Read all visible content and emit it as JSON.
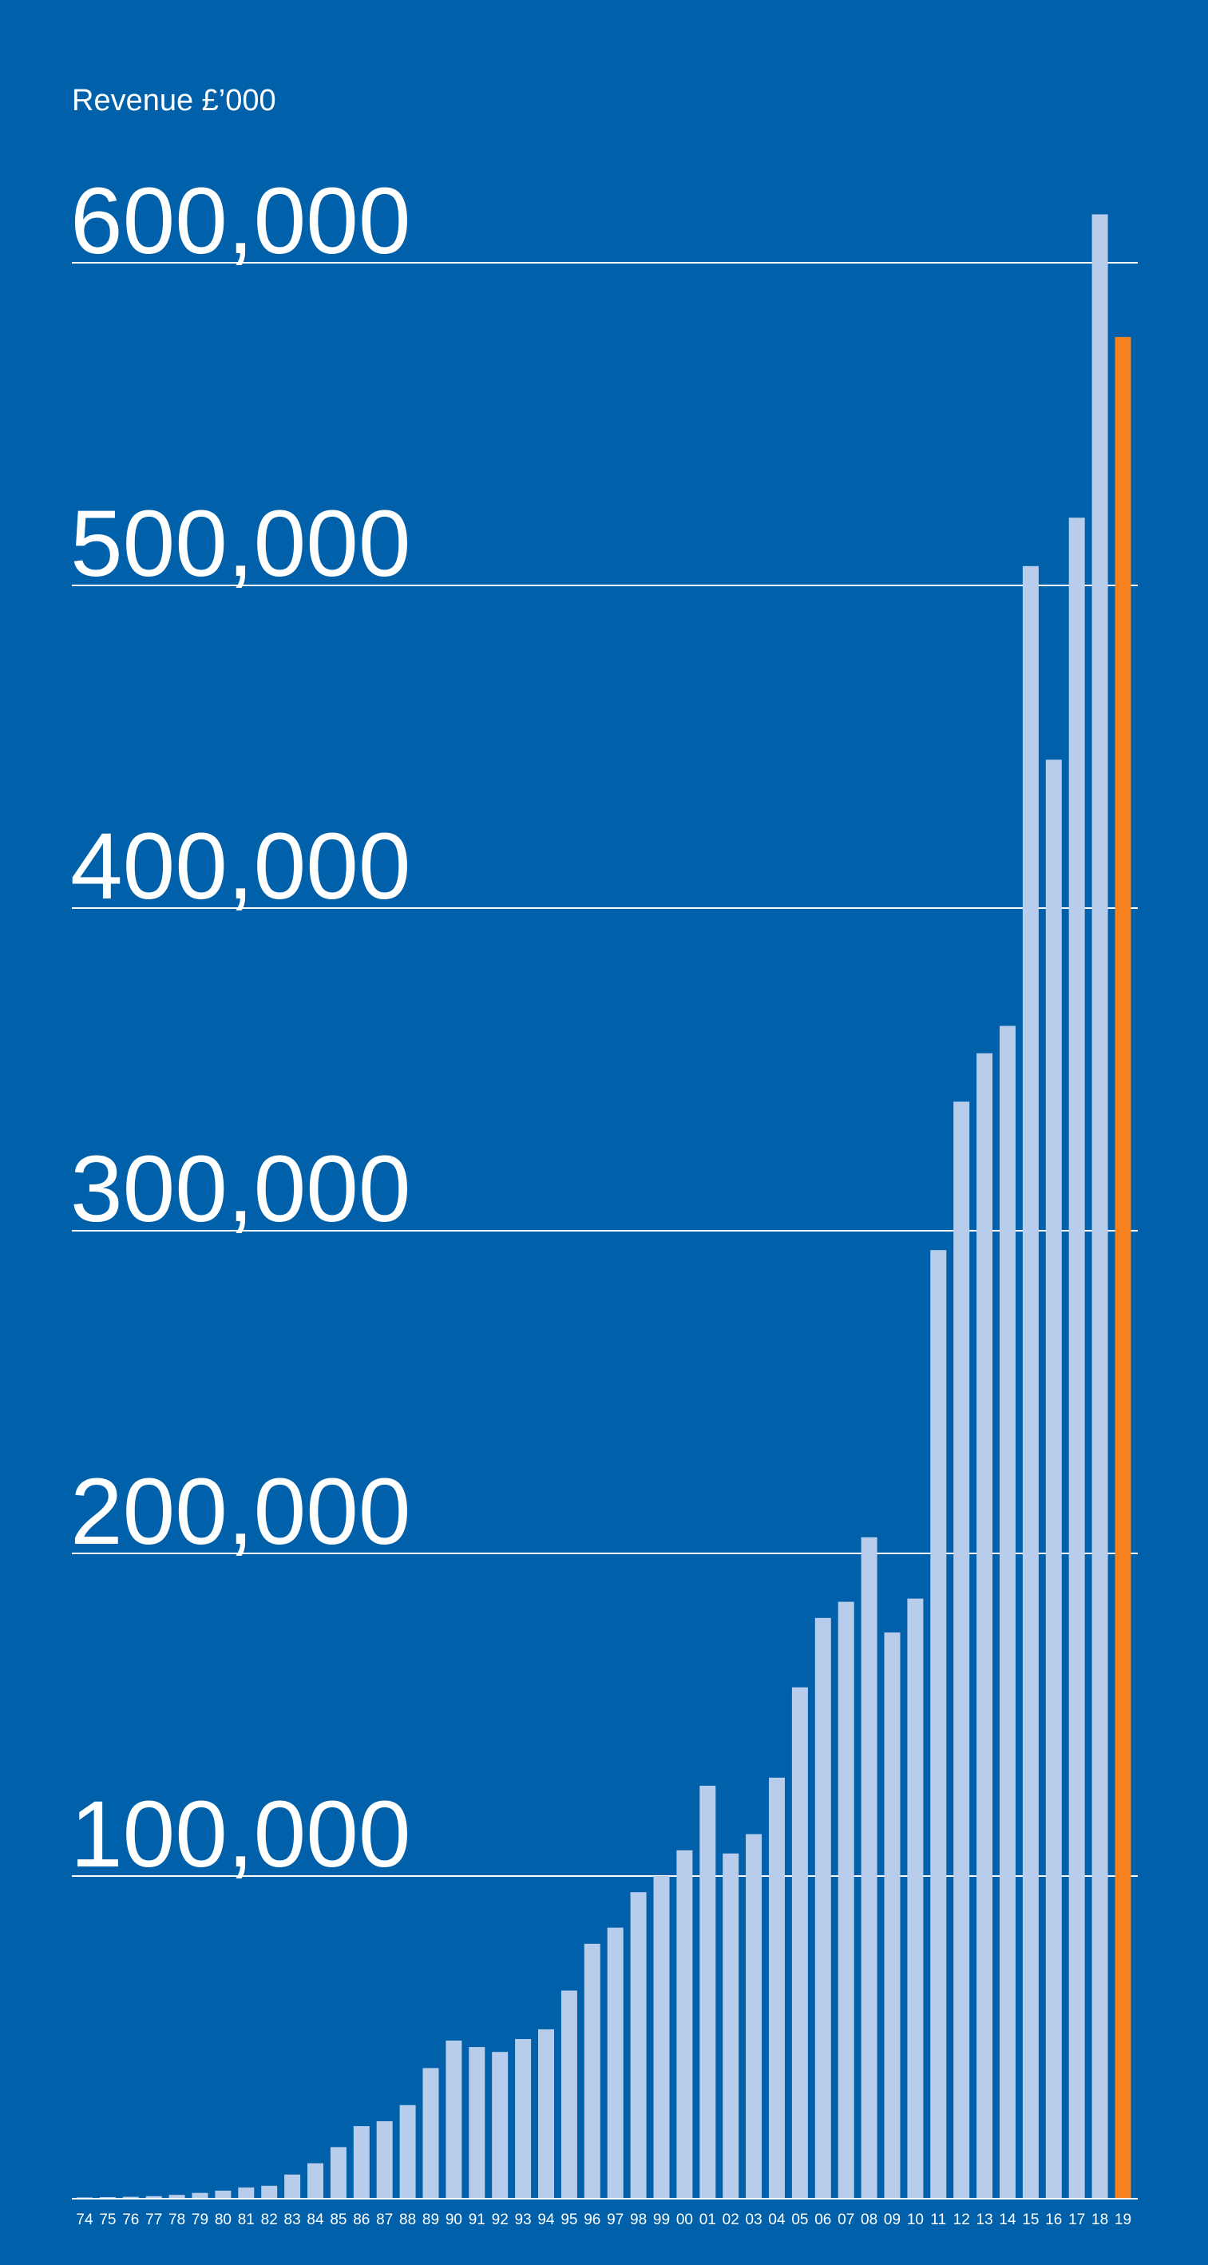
{
  "colors": {
    "background": "#0060a9",
    "bar": "#b8ccec",
    "highlight_bar": "#f5821f",
    "gridline": "#ffffff",
    "text": "#ffffff"
  },
  "chart_data": {
    "type": "bar",
    "title": "",
    "xlabel": "",
    "ylabel": "Revenue £’000",
    "ylim": [
      0,
      620000
    ],
    "grid": true,
    "y_ticks": [
      {
        "value": 100000,
        "label": "100,000"
      },
      {
        "value": 200000,
        "label": "200,000"
      },
      {
        "value": 300000,
        "label": "300,000"
      },
      {
        "value": 400000,
        "label": "400,000"
      },
      {
        "value": 500000,
        "label": "500,000"
      },
      {
        "value": 600000,
        "label": "600,000"
      }
    ],
    "categories": [
      "74",
      "75",
      "76",
      "77",
      "78",
      "79",
      "80",
      "81",
      "82",
      "83",
      "84",
      "85",
      "86",
      "87",
      "88",
      "89",
      "90",
      "91",
      "92",
      "93",
      "94",
      "95",
      "96",
      "97",
      "98",
      "99",
      "00",
      "01",
      "02",
      "03",
      "04",
      "05",
      "06",
      "07",
      "08",
      "09",
      "10",
      "11",
      "12",
      "13",
      "14",
      "15",
      "16",
      "17",
      "18",
      "19"
    ],
    "values": [
      400,
      500,
      600,
      800,
      1200,
      1800,
      2500,
      3500,
      4000,
      7500,
      11000,
      16000,
      22500,
      24000,
      29000,
      40500,
      49000,
      47000,
      45500,
      49500,
      52500,
      64500,
      79000,
      84000,
      95000,
      100000,
      108000,
      128000,
      107000,
      113000,
      130500,
      158500,
      180000,
      185000,
      205000,
      175500,
      186000,
      294000,
      340000,
      355000,
      363500,
      506000,
      446000,
      521000,
      615000,
      577000
    ],
    "highlight_index": 45
  }
}
